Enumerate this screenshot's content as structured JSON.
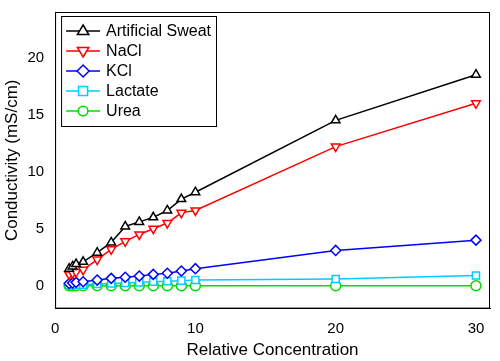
{
  "chart_data": {
    "type": "line",
    "x_label": "Relative Concentration",
    "y_label": "Conductivity (mS/cm)",
    "x": [
      1,
      1.25,
      1.5,
      2,
      3,
      4,
      5,
      6,
      7,
      8,
      9,
      10,
      20,
      30
    ],
    "series": [
      {
        "name": "Artificial Sweat",
        "color": "#000000",
        "marker": "triangle-up",
        "values": [
          1.5,
          1.7,
          1.9,
          2.1,
          2.9,
          3.8,
          5.2,
          5.6,
          6.0,
          6.6,
          7.6,
          8.2,
          14.5,
          18.5
        ]
      },
      {
        "name": "NaCl",
        "color": "#ff0000",
        "marker": "triangle-down",
        "values": [
          1.0,
          1.1,
          1.2,
          1.4,
          2.3,
          3.2,
          3.9,
          4.5,
          5.0,
          5.5,
          6.4,
          6.6,
          12.2,
          16.0
        ]
      },
      {
        "name": "KCl",
        "color": "#0000ff",
        "marker": "diamond",
        "values": [
          0.2,
          0.25,
          0.3,
          0.35,
          0.5,
          0.65,
          0.75,
          0.85,
          1.0,
          1.1,
          1.3,
          1.5,
          3.1,
          4.0
        ]
      },
      {
        "name": "Lactate",
        "color": "#00ccff",
        "marker": "square",
        "values": [
          0.05,
          0.06,
          0.07,
          0.1,
          0.15,
          0.2,
          0.25,
          0.3,
          0.35,
          0.4,
          0.45,
          0.5,
          0.6,
          0.9
        ]
      },
      {
        "name": "Urea",
        "color": "#00dd00",
        "marker": "circle",
        "values": [
          0,
          0,
          0,
          0,
          0,
          0,
          0,
          0,
          0,
          0,
          0,
          0,
          0,
          0
        ]
      }
    ],
    "xlim": [
      0,
      31
    ],
    "xticks": [
      0,
      10,
      20,
      30
    ],
    "ylim": [
      -2,
      24
    ],
    "yticks": [
      0,
      5,
      10,
      15,
      20
    ],
    "grid": false,
    "legend": "upper left"
  }
}
